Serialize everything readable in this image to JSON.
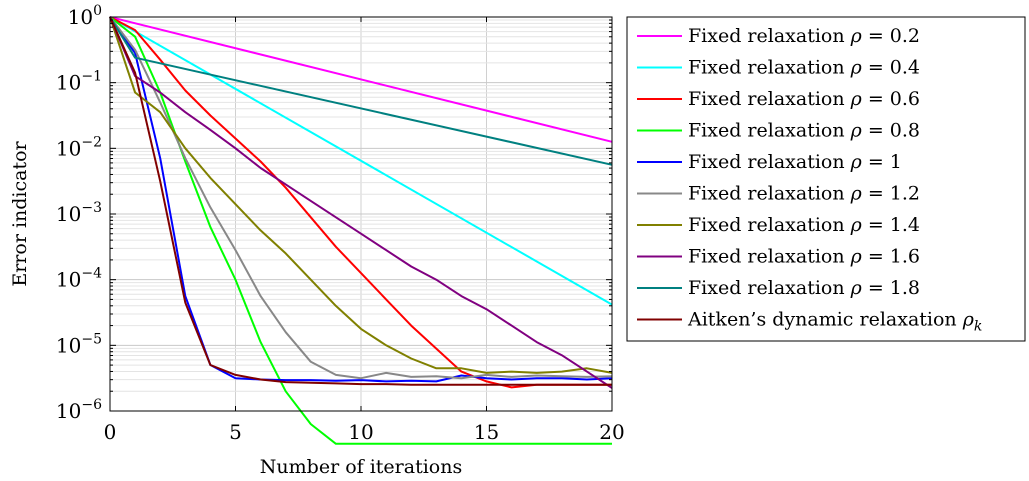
{
  "chart_data": {
    "type": "line",
    "xlabel": "Number of iterations",
    "ylabel": "Error indicator",
    "xlim": [
      0,
      20
    ],
    "ylim_exponents": [
      -6,
      0
    ],
    "yscale": "log",
    "grid": true,
    "legend_position": "right",
    "x_ticks": [
      0,
      5,
      10,
      15,
      20
    ],
    "y_ticks": [
      {
        "base": "10",
        "exp": "0"
      },
      {
        "base": "10",
        "exp": "−1"
      },
      {
        "base": "10",
        "exp": "−2"
      },
      {
        "base": "10",
        "exp": "−3"
      },
      {
        "base": "10",
        "exp": "−4"
      },
      {
        "base": "10",
        "exp": "−5"
      },
      {
        "base": "10",
        "exp": "−6"
      }
    ],
    "series": [
      {
        "name_text": "Fixed relaxation ",
        "symbol": "ρ",
        "value": " = 0.2",
        "color": "#ff00ff",
        "x": [
          0,
          20
        ],
        "log10_y": [
          0,
          -1.9
        ]
      },
      {
        "name_text": "Fixed relaxation ",
        "symbol": "ρ",
        "value": " = 0.4",
        "color": "#00ffff",
        "x": [
          0,
          20
        ],
        "log10_y": [
          0,
          -4.38
        ]
      },
      {
        "name_text": "Fixed relaxation ",
        "symbol": "ρ",
        "value": " = 0.6",
        "color": "#ff0000",
        "x": [
          0,
          1,
          2,
          3,
          4,
          5,
          6,
          7,
          8,
          9,
          10,
          11,
          12,
          13,
          14,
          15,
          16,
          17,
          18,
          19,
          20
        ],
        "log10_y": [
          0,
          -0.2,
          -0.65,
          -1.12,
          -1.5,
          -1.85,
          -2.2,
          -2.6,
          -3.05,
          -3.5,
          -3.9,
          -4.3,
          -4.7,
          -5.05,
          -5.4,
          -5.55,
          -5.64,
          -5.6,
          -5.6,
          -5.6,
          -5.6
        ]
      },
      {
        "name_text": "Fixed relaxation ",
        "symbol": "ρ",
        "value": " = 0.8",
        "color": "#00ff00",
        "x": [
          0,
          1,
          2,
          3,
          4,
          5,
          6,
          7,
          8,
          9,
          10,
          11,
          12,
          13,
          14,
          15,
          16,
          17,
          18,
          19,
          20
        ],
        "log10_y": [
          0,
          -0.3,
          -1.15,
          -2.2,
          -3.2,
          -4.0,
          -4.95,
          -5.7,
          -6.2,
          -6.5,
          -6.5,
          -6.5,
          -6.5,
          -6.5,
          -6.5,
          -6.5,
          -6.5,
          -6.5,
          -6.5,
          -6.5,
          -6.5
        ]
      },
      {
        "name_text": "Fixed relaxation ",
        "symbol": "ρ",
        "value": " = 1",
        "color": "#0000ff",
        "x": [
          0,
          1,
          2,
          3,
          4,
          5,
          6,
          7,
          8,
          9,
          10,
          11,
          12,
          13,
          14,
          15,
          16,
          17,
          18,
          19,
          20
        ],
        "log10_y": [
          0,
          -0.55,
          -2.15,
          -4.25,
          -5.3,
          -5.5,
          -5.52,
          -5.53,
          -5.53,
          -5.54,
          -5.53,
          -5.55,
          -5.54,
          -5.55,
          -5.46,
          -5.5,
          -5.52,
          -5.5,
          -5.5,
          -5.52,
          -5.5
        ]
      },
      {
        "name_text": "Fixed relaxation ",
        "symbol": "ρ",
        "value": " = 1.2",
        "color": "#888888",
        "x": [
          0,
          1,
          2,
          3,
          4,
          5,
          6,
          7,
          8,
          9,
          10,
          11,
          12,
          13,
          14,
          15,
          16,
          17,
          18,
          19,
          20
        ],
        "log10_y": [
          0,
          -0.5,
          -1.3,
          -2.15,
          -2.9,
          -3.55,
          -4.25,
          -4.8,
          -5.25,
          -5.45,
          -5.5,
          -5.42,
          -5.48,
          -5.47,
          -5.5,
          -5.45,
          -5.48,
          -5.46,
          -5.47,
          -5.48,
          -5.47
        ]
      },
      {
        "name_text": "Fixed relaxation ",
        "symbol": "ρ",
        "value": " = 1.4",
        "color": "#808000",
        "x": [
          0,
          1,
          2,
          3,
          4,
          5,
          6,
          7,
          8,
          9,
          10,
          11,
          12,
          13,
          14,
          15,
          16,
          17,
          18,
          19,
          20
        ],
        "log10_y": [
          0,
          -1.15,
          -1.45,
          -2.0,
          -2.45,
          -2.85,
          -3.25,
          -3.6,
          -4.0,
          -4.4,
          -4.75,
          -5.0,
          -5.2,
          -5.35,
          -5.35,
          -5.42,
          -5.4,
          -5.42,
          -5.4,
          -5.35,
          -5.42
        ]
      },
      {
        "name_text": "Fixed relaxation ",
        "symbol": "ρ",
        "value": " = 1.6",
        "color": "#800080",
        "x": [
          0,
          1,
          2,
          3,
          4,
          5,
          6,
          7,
          8,
          9,
          10,
          11,
          12,
          13,
          14,
          15,
          16,
          17,
          18,
          19,
          20
        ],
        "log10_y": [
          0,
          -0.9,
          -1.15,
          -1.45,
          -1.72,
          -2.0,
          -2.3,
          -2.55,
          -2.8,
          -3.05,
          -3.3,
          -3.55,
          -3.8,
          -4.0,
          -4.25,
          -4.45,
          -4.7,
          -4.95,
          -5.15,
          -5.4,
          -5.65
        ]
      },
      {
        "name_text": "Fixed relaxation ",
        "symbol": "ρ",
        "value": " = 1.8",
        "color": "#008080",
        "x": [
          0,
          1,
          20
        ],
        "log10_y": [
          0,
          -0.62,
          -2.25
        ]
      },
      {
        "name_text": "Aitken’s dynamic relaxation ",
        "symbol": "ρ",
        "value": "",
        "subscript": "k",
        "color": "#800000",
        "x": [
          0,
          1,
          2,
          3,
          4,
          5,
          6,
          7,
          8,
          9,
          10,
          11,
          12,
          13,
          14,
          15,
          16,
          17,
          18,
          19,
          20
        ],
        "log10_y": [
          0,
          -0.85,
          -2.5,
          -4.35,
          -5.3,
          -5.45,
          -5.52,
          -5.56,
          -5.57,
          -5.58,
          -5.59,
          -5.59,
          -5.6,
          -5.6,
          -5.6,
          -5.6,
          -5.6,
          -5.6,
          -5.6,
          -5.6,
          -5.6
        ]
      }
    ]
  }
}
